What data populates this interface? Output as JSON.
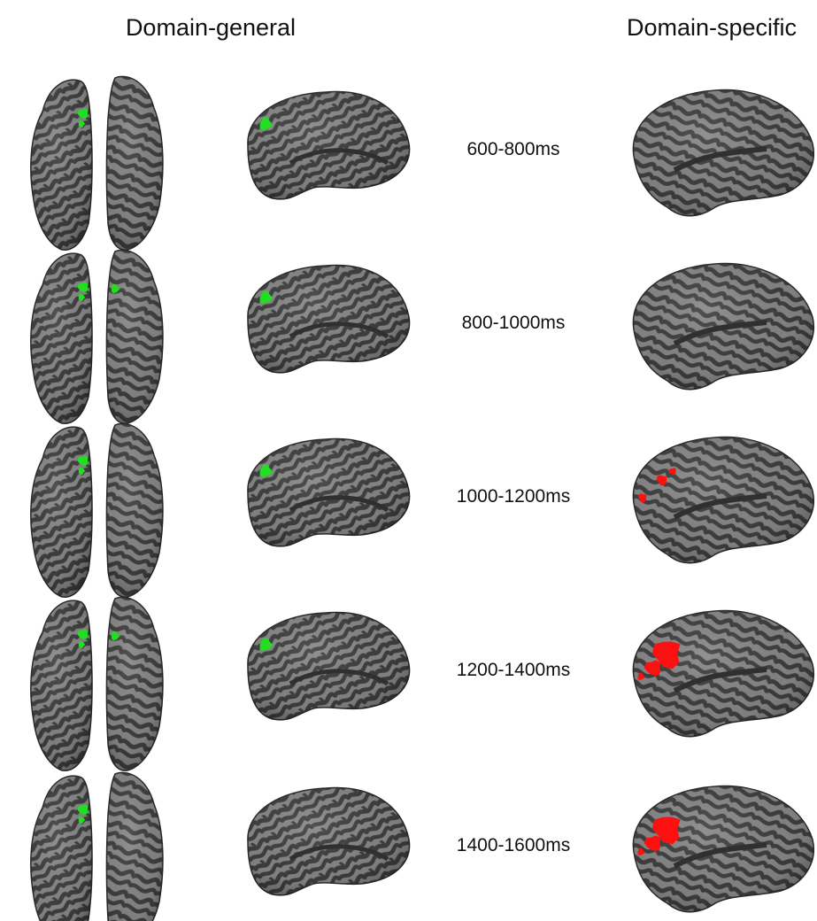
{
  "headers": {
    "left": "Domain-general",
    "right": "Domain-specific"
  },
  "rows": [
    {
      "time_window": "600-800ms",
      "general_frontal": 1,
      "general_medial": 1,
      "specific_lateral": 0
    },
    {
      "time_window": "800-1000ms",
      "general_frontal": 2,
      "general_medial": 1,
      "specific_lateral": 0
    },
    {
      "time_window": "1000-1200ms",
      "general_frontal": 1,
      "general_medial": 1,
      "specific_lateral": 1
    },
    {
      "time_window": "1200-1400ms",
      "general_frontal": 2,
      "general_medial": 1,
      "specific_lateral": 2
    },
    {
      "time_window": "1400-1600ms",
      "general_frontal": 1,
      "general_medial": 0,
      "specific_lateral": 2
    }
  ],
  "colors": {
    "brain_light": "#858585",
    "brain_dark": "#3d3d3d",
    "general_activation": "#22dd22",
    "specific_activation": "#ff1010",
    "text": "#111111"
  }
}
